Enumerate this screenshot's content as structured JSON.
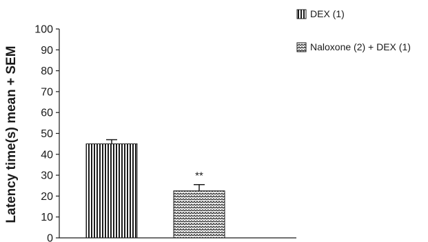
{
  "chart_data": {
    "type": "bar",
    "categories": [
      "DEX (1)",
      "Naloxone (2) + DEX (1)"
    ],
    "values": [
      45,
      22.5
    ],
    "errors": [
      2,
      3
    ],
    "annotations": [
      "",
      "**"
    ],
    "ylabel": "Latency time(s) mean + SEM",
    "ylim": [
      0,
      100
    ],
    "yticks": [
      0,
      10,
      20,
      30,
      40,
      50,
      60,
      70,
      80,
      90,
      100
    ],
    "legend": {
      "placement": "top-right",
      "entries": [
        {
          "label": "DEX (1)",
          "pattern": "vertical-stripes"
        },
        {
          "label": "Naloxone (2) + DEX (1)",
          "pattern": "zigzag-crosshatch"
        }
      ]
    },
    "grid": false,
    "colors": {
      "ink": "#1a1a1a",
      "background": "#ffffff"
    }
  }
}
